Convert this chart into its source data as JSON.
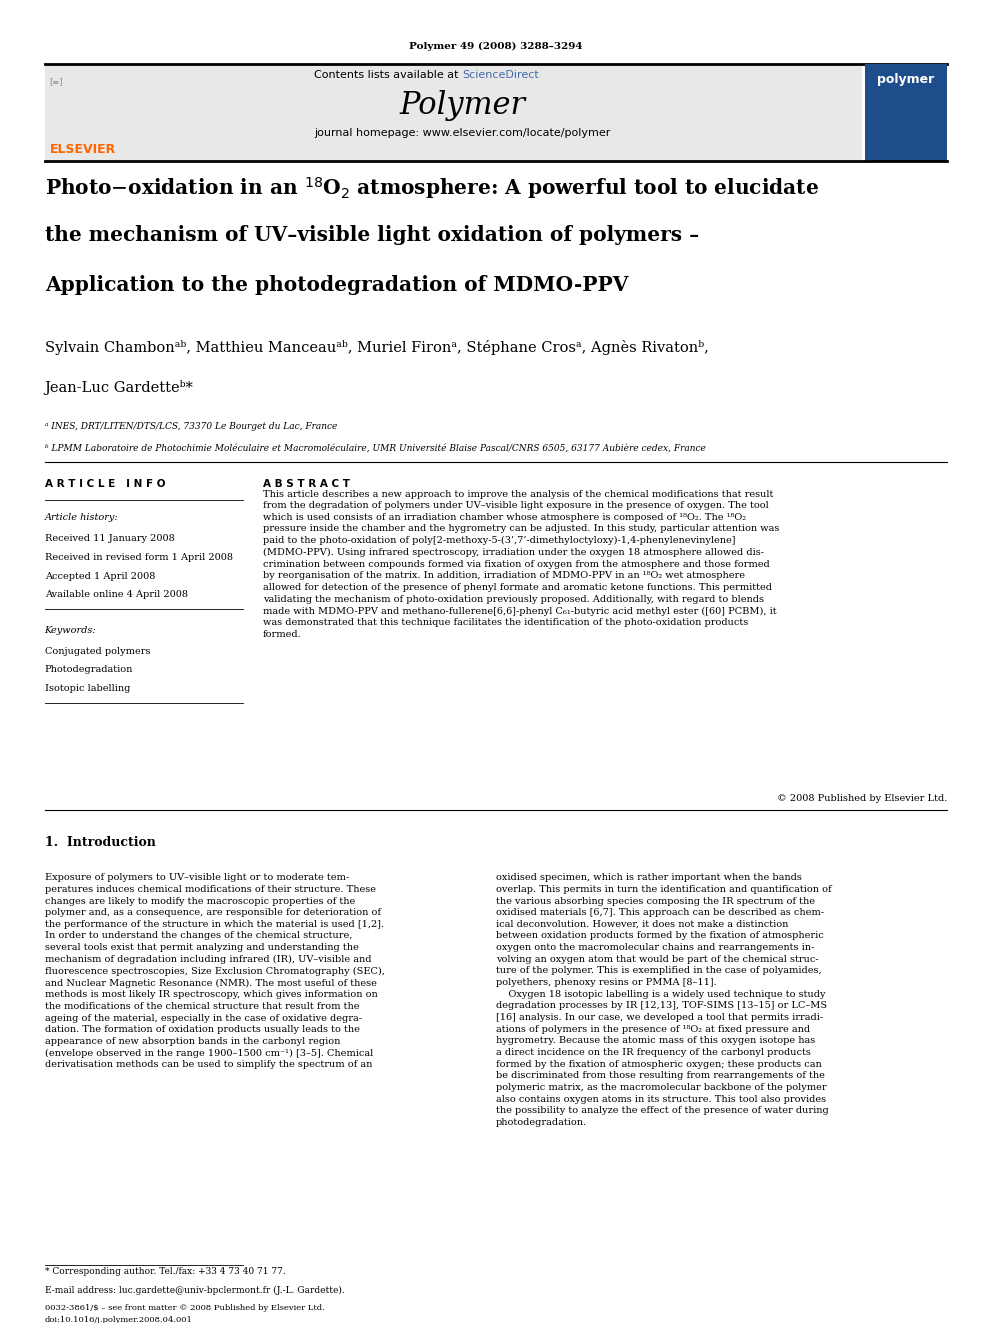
{
  "page_width": 9.92,
  "page_height": 13.23,
  "background_color": "#ffffff",
  "top_citation": "Polymer 49 (2008) 3288–3294",
  "header_bg": "#e8e8e8",
  "header_contents": "Contents lists available at ",
  "header_sciencedirect": "ScienceDirect",
  "header_sciencedirect_color": "#4169aa",
  "header_journal_name": "Polymer",
  "header_homepage": "journal homepage: www.elsevier.com/locate/polymer",
  "title_line1": "Photo–oxidation in an $^{18}$O$_2$ atmosphere: A powerful tool to elucidate",
  "title_line2": "the mechanism of UV–visible light oxidation of polymers –",
  "title_line3": "Application to the photodegradation of MDMO-PPV",
  "authors_line1": "Sylvain Chambonᵃᵇ, Matthieu Manceauᵃᵇ, Muriel Fironᵃ, Stéphane Crosᵃ, Agnès Rivatonᵇ,",
  "authors_line2": "Jean-Luc Gardetteᵇ*",
  "affil_a": "ᵃ INES, DRT/LITEN/DTS/LCS, 73370 Le Bourget du Lac, France",
  "affil_b": "ᵇ LPMM Laboratoire de Photochimie Moléculaire et Macromoléculaire, UMR Université Blaise Pascal/CNRS 6505, 63177 Aubière cedex, France",
  "article_info_title": "ARTICLE INFO",
  "abstract_title": "ABSTRACT",
  "article_history_label": "Article history:",
  "received": "Received 11 January 2008",
  "received_revised": "Received in revised form 1 April 2008",
  "accepted": "Accepted 1 April 2008",
  "available": "Available online 4 April 2008",
  "keywords_label": "Keywords:",
  "keyword1": "Conjugated polymers",
  "keyword2": "Photodegradation",
  "keyword3": "Isotopic labelling",
  "abstract_text_lines": [
    "This article describes a new approach to improve the analysis of the chemical modifications that result",
    "from the degradation of polymers under UV–visible light exposure in the presence of oxygen. The tool",
    "which is used consists of an irradiation chamber whose atmosphere is composed of ¹⁸O₂. The ¹⁸O₂",
    "pressure inside the chamber and the hygrometry can be adjusted. In this study, particular attention was",
    "paid to the photo-oxidation of poly[2-methoxy-5-(3’,7’-dimethyloctyloxy)-1,4-phenylenevinylene]",
    "(MDMO-PPV). Using infrared spectroscopy, irradiation under the oxygen 18 atmosphere allowed dis-",
    "crimination between compounds formed via fixation of oxygen from the atmosphere and those formed",
    "by reorganisation of the matrix. In addition, irradiation of MDMO-PPV in an ¹⁸O₂ wet atmosphere",
    "allowed for detection of the presence of phenyl formate and aromatic ketone functions. This permitted",
    "validating the mechanism of photo-oxidation previously proposed. Additionally, with regard to blends",
    "made with MDMO-PPV and methano-fullerene[6,6]-phenyl C₆₁-butyric acid methyl ester ([60] PCBM), it",
    "was demonstrated that this technique facilitates the identification of the photo-oxidation products",
    "formed."
  ],
  "copyright_text": "© 2008 Published by Elsevier Ltd.",
  "section1_title": "1.  Introduction",
  "intro_col1_lines": [
    "Exposure of polymers to UV–visible light or to moderate tem-",
    "peratures induces chemical modifications of their structure. These",
    "changes are likely to modify the macroscopic properties of the",
    "polymer and, as a consequence, are responsible for deterioration of",
    "the performance of the structure in which the material is used [1,2].",
    "In order to understand the changes of the chemical structure,",
    "several tools exist that permit analyzing and understanding the",
    "mechanism of degradation including infrared (IR), UV–visible and",
    "fluorescence spectroscopies, Size Exclusion Chromatography (SEC),",
    "and Nuclear Magnetic Resonance (NMR). The most useful of these",
    "methods is most likely IR spectroscopy, which gives information on",
    "the modifications of the chemical structure that result from the",
    "ageing of the material, especially in the case of oxidative degra-",
    "dation. The formation of oxidation products usually leads to the",
    "appearance of new absorption bands in the carbonyl region",
    "(envelope observed in the range 1900–1500 cm⁻¹) [3–5]. Chemical",
    "derivatisation methods can be used to simplify the spectrum of an"
  ],
  "intro_col2_lines": [
    "oxidised specimen, which is rather important when the bands",
    "overlap. This permits in turn the identification and quantification of",
    "the various absorbing species composing the IR spectrum of the",
    "oxidised materials [6,7]. This approach can be described as chem-",
    "ical deconvolution. However, it does not make a distinction",
    "between oxidation products formed by the fixation of atmospheric",
    "oxygen onto the macromolecular chains and rearrangements in-",
    "volving an oxygen atom that would be part of the chemical struc-",
    "ture of the polymer. This is exemplified in the case of polyamides,",
    "polyethers, phenoxy resins or PMMA [8–11].",
    "    Oxygen 18 isotopic labelling is a widely used technique to study",
    "degradation processes by IR [12,13], TOF-SIMS [13–15] or LC–MS",
    "[16] analysis. In our case, we developed a tool that permits irradi-",
    "ations of polymers in the presence of ¹⁸O₂ at fixed pressure and",
    "hygrometry. Because the atomic mass of this oxygen isotope has",
    "a direct incidence on the IR frequency of the carbonyl products",
    "formed by the fixation of atmospheric oxygen; these products can",
    "be discriminated from those resulting from rearrangements of the",
    "polymeric matrix, as the macromolecular backbone of the polymer",
    "also contains oxygen atoms in its structure. This tool also provides",
    "the possibility to analyze the effect of the presence of water during",
    "photodegradation."
  ],
  "footnote_star": "* Corresponding author. Tel./fax: +33 4 73 40 71 77.",
  "footnote_email": "E-mail address: luc.gardette@univ-bpclermont.fr (J.-L. Gardette).",
  "bottom_issn": "0032-3861/$ – see front matter © 2008 Published by Elsevier Ltd.",
  "bottom_doi": "doi:10.1016/j.polymer.2008.04.001",
  "elsevier_color": "#ff6600",
  "sciencedirect_color": "#4169aa",
  "separator_color": "#000000"
}
